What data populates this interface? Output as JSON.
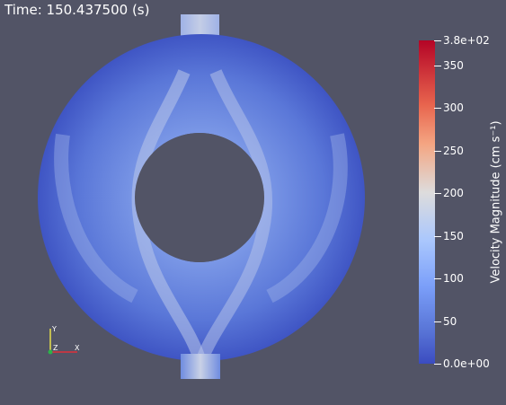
{
  "time_annotation": "Time: 150.437500 (s)",
  "colorbar": {
    "title": "Velocity Magnitude (cm s⁻¹)",
    "max_label": "3.8e+02",
    "min_label": "0.0e+00",
    "tick_labels": [
      "350",
      "300",
      "250",
      "200",
      "150",
      "100",
      "50"
    ],
    "colors": [
      "#b40426",
      "#dddcdc",
      "#3b4cc0"
    ]
  },
  "axes": {
    "x": "X",
    "y": "Y",
    "z": "Z"
  },
  "colors": {
    "background": "#525466",
    "mesh_low": "#3b4cc0",
    "mesh_mid": "#7a97e6",
    "mesh_high": "#c9d1e6"
  }
}
